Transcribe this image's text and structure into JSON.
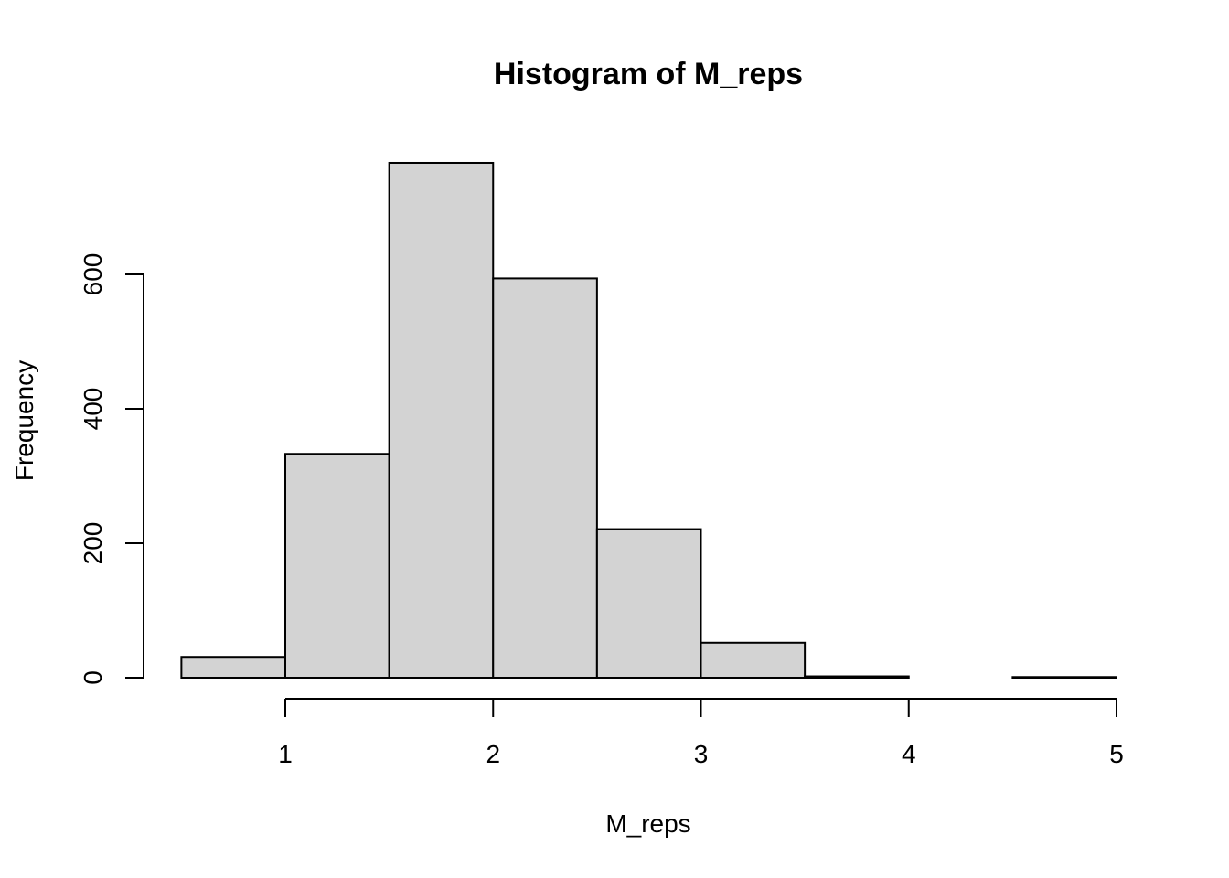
{
  "chart_data": {
    "type": "bar",
    "title": "Histogram of M_reps",
    "xlabel": "M_reps",
    "ylabel": "Frequency",
    "bins": [
      {
        "start": 0.5,
        "end": 1.0,
        "count": 31
      },
      {
        "start": 1.0,
        "end": 1.5,
        "count": 333
      },
      {
        "start": 1.5,
        "end": 2.0,
        "count": 766
      },
      {
        "start": 2.0,
        "end": 2.5,
        "count": 594
      },
      {
        "start": 2.5,
        "end": 3.0,
        "count": 221
      },
      {
        "start": 3.0,
        "end": 3.5,
        "count": 52
      },
      {
        "start": 3.5,
        "end": 4.0,
        "count": 2
      },
      {
        "start": 4.0,
        "end": 4.5,
        "count": 0
      },
      {
        "start": 4.5,
        "end": 5.0,
        "count": 1
      }
    ],
    "x_ticks": [
      1,
      2,
      3,
      4,
      5
    ],
    "y_ticks": [
      0,
      200,
      400,
      600
    ],
    "xlim": [
      0.5,
      5.0
    ],
    "ylim": [
      0,
      766
    ],
    "grid": false
  }
}
